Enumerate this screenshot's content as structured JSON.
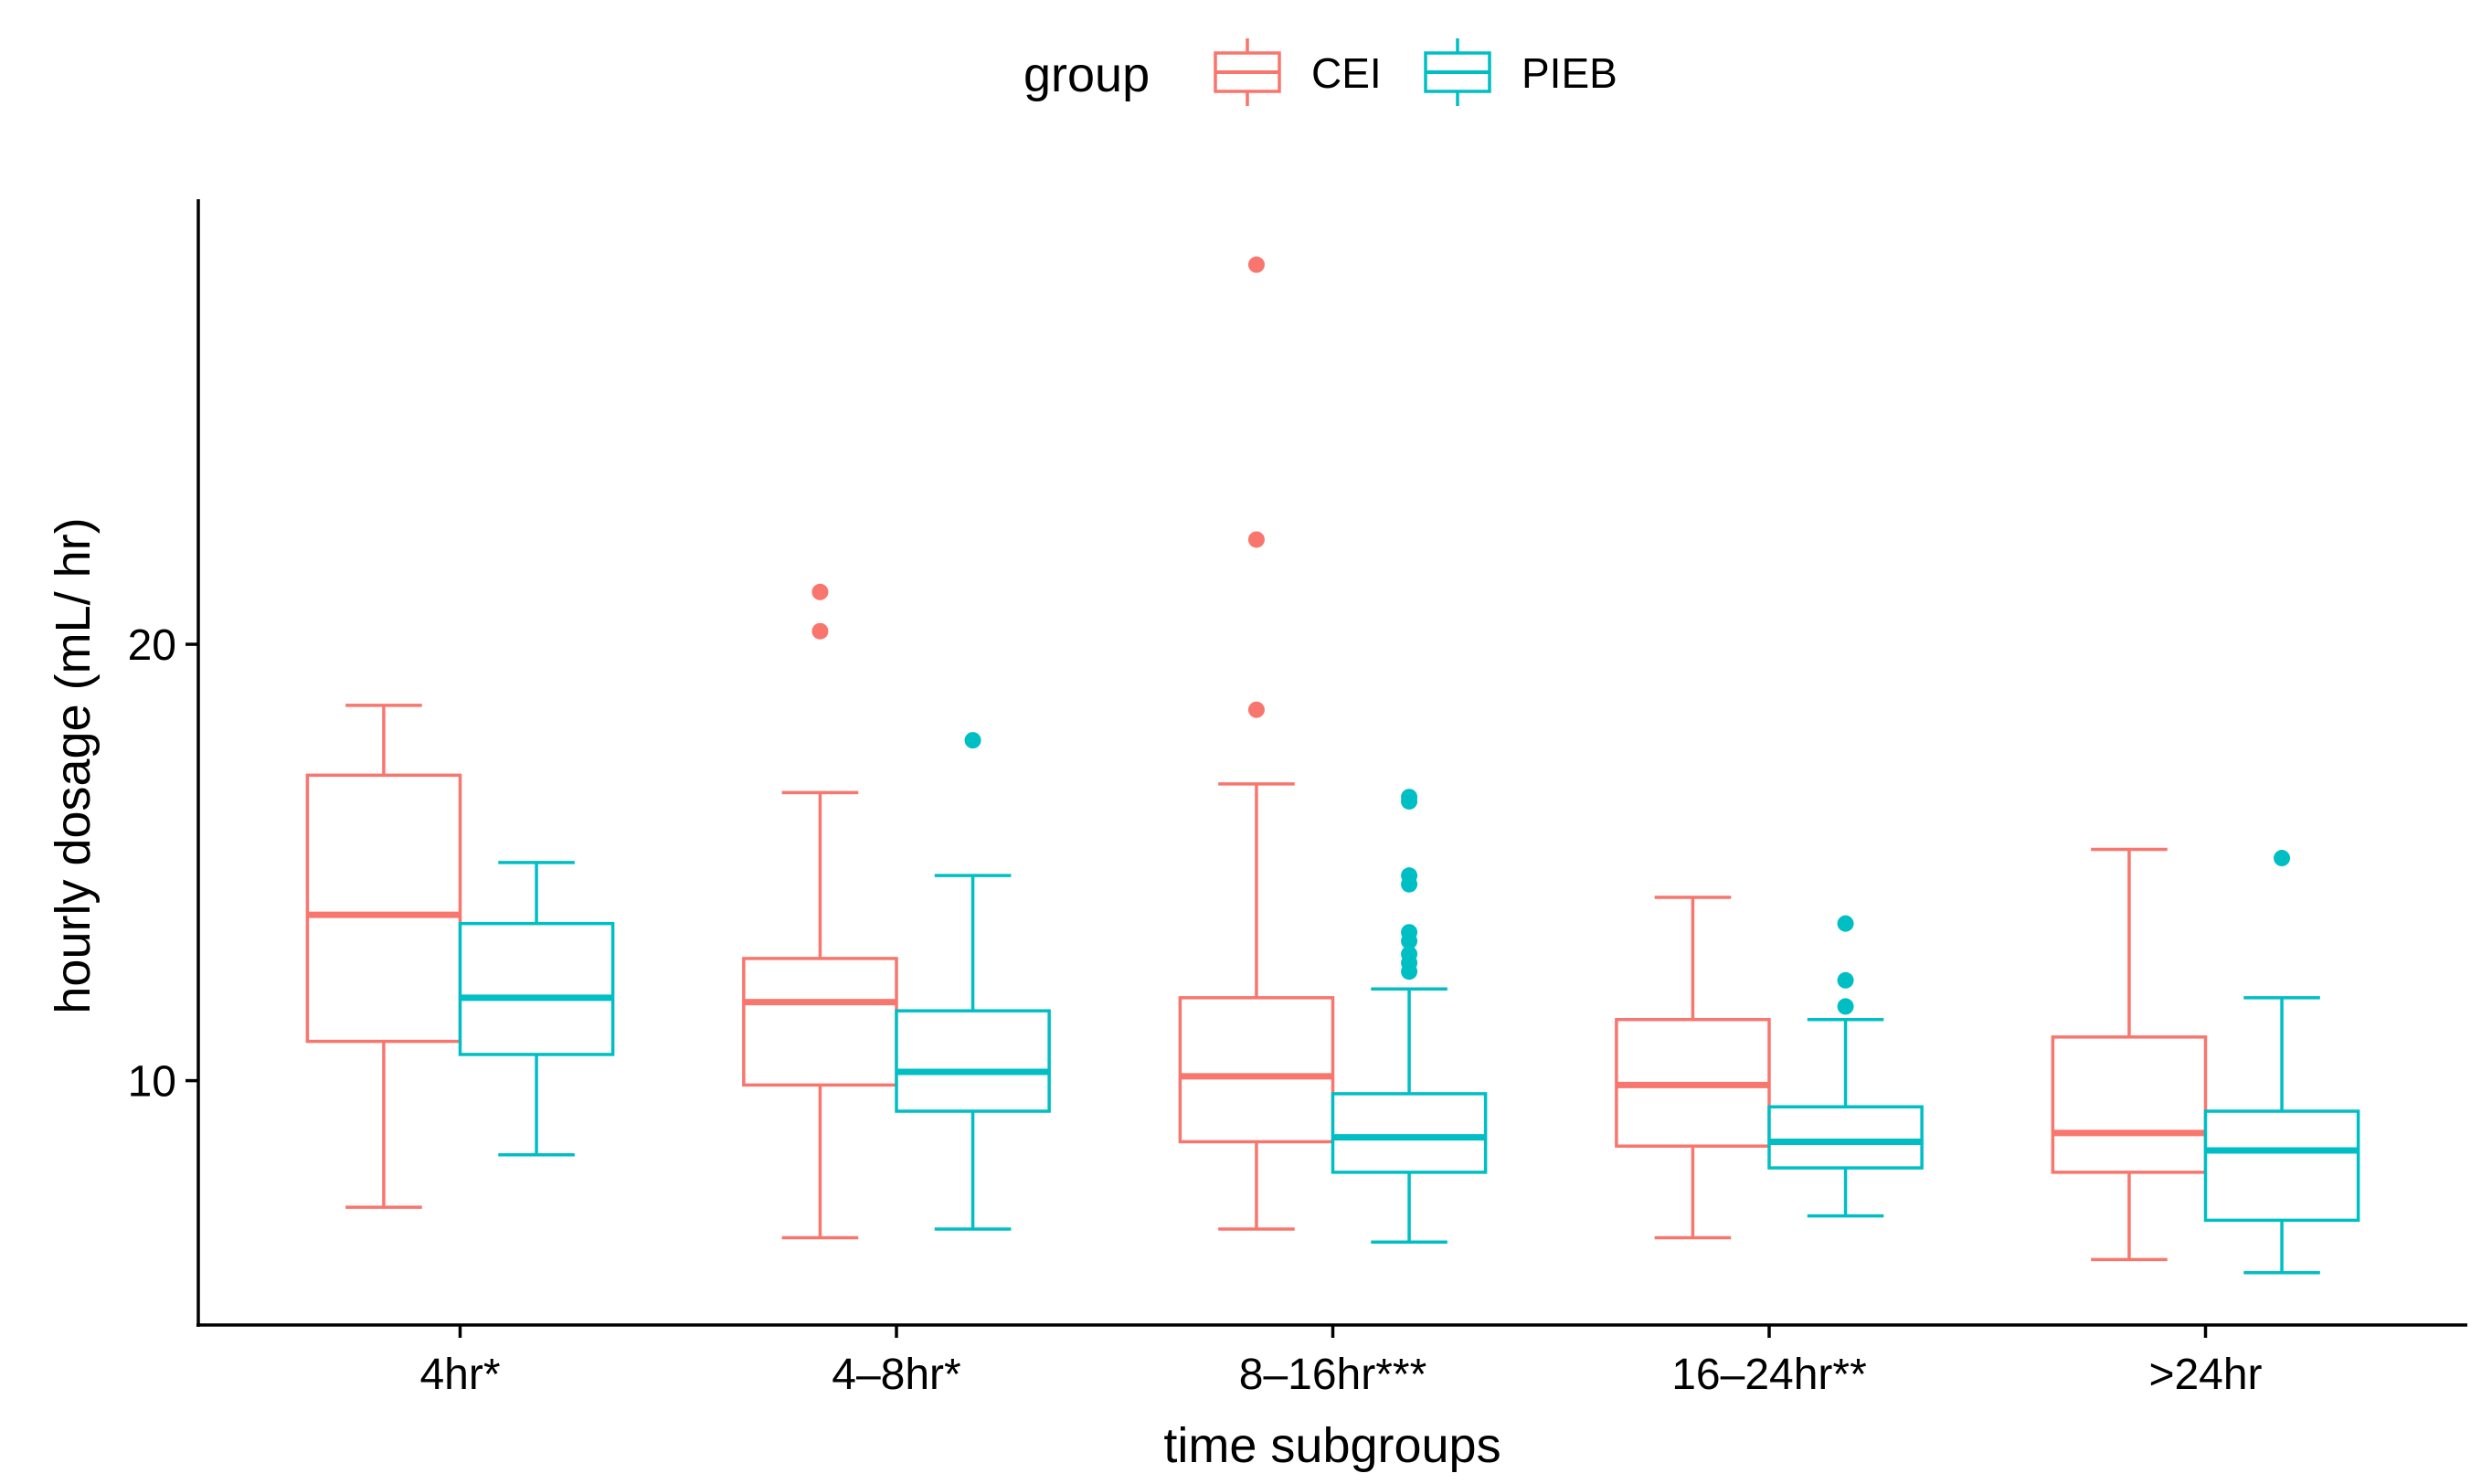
{
  "chart_data": {
    "type": "boxplot",
    "title": "",
    "xlabel": "time subgroups",
    "ylabel": "hourly dosage (mL/ hr)",
    "ylim": [
      4.4,
      30.2
    ],
    "yticks": [
      10,
      20
    ],
    "ytick_labels": [
      "10",
      "20"
    ],
    "grid": false,
    "legend": {
      "title": "group",
      "position": "top",
      "entries": [
        {
          "name": "CEI",
          "color": "#F8766D"
        },
        {
          "name": "PIEB",
          "color": "#00BFC4"
        }
      ]
    },
    "categories": [
      "4hr*",
      "4–8hr*",
      "8–16hr***",
      "16–24hr**",
      ">24hr"
    ],
    "series": [
      {
        "name": "CEI",
        "color": "#F8766D",
        "boxes": [
          {
            "whisker_low": 7.1,
            "q1": 10.9,
            "median": 13.8,
            "q3": 17.0,
            "whisker_high": 18.6,
            "outliers": []
          },
          {
            "whisker_low": 6.4,
            "q1": 9.9,
            "median": 11.8,
            "q3": 12.8,
            "whisker_high": 16.6,
            "outliers": [
              20.3,
              21.2
            ]
          },
          {
            "whisker_low": 6.6,
            "q1": 8.6,
            "median": 10.1,
            "q3": 11.9,
            "whisker_high": 16.8,
            "outliers": [
              18.5,
              22.4,
              28.7
            ]
          },
          {
            "whisker_low": 6.4,
            "q1": 8.5,
            "median": 9.9,
            "q3": 11.4,
            "whisker_high": 14.2,
            "outliers": []
          },
          {
            "whisker_low": 5.9,
            "q1": 7.9,
            "median": 8.8,
            "q3": 11.0,
            "whisker_high": 15.3,
            "outliers": []
          }
        ]
      },
      {
        "name": "PIEB",
        "color": "#00BFC4",
        "boxes": [
          {
            "whisker_low": 8.3,
            "q1": 10.6,
            "median": 11.9,
            "q3": 13.6,
            "whisker_high": 15.0,
            "outliers": []
          },
          {
            "whisker_low": 6.6,
            "q1": 9.3,
            "median": 10.2,
            "q3": 11.6,
            "whisker_high": 14.7,
            "outliers": [
              17.8
            ]
          },
          {
            "whisker_low": 6.3,
            "q1": 7.9,
            "median": 8.7,
            "q3": 9.7,
            "whisker_high": 12.1,
            "outliers": [
              12.5,
              12.7,
              12.9,
              13.2,
              13.4,
              14.5,
              14.7,
              16.4,
              16.5
            ]
          },
          {
            "whisker_low": 6.9,
            "q1": 8.0,
            "median": 8.6,
            "q3": 9.4,
            "whisker_high": 11.4,
            "outliers": [
              11.7,
              12.3,
              13.6
            ]
          },
          {
            "whisker_low": 5.6,
            "q1": 6.8,
            "median": 8.4,
            "q3": 9.3,
            "whisker_high": 11.9,
            "outliers": [
              15.1
            ]
          }
        ]
      }
    ]
  }
}
